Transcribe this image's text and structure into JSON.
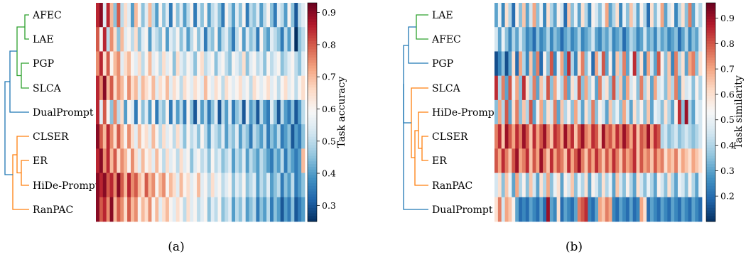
{
  "colors": {
    "cluster_green": "#2ca02c",
    "cluster_orange": "#ff7f0e",
    "cluster_blue": "#1f77b4",
    "colormap": "RdBu_r"
  },
  "chart_data": [
    {
      "type": "heatmap",
      "caption": "(a)",
      "colorbar_label": "Task accuracy",
      "colorbar_ticks": [
        "0.3",
        "0.4",
        "0.5",
        "0.6",
        "0.7",
        "0.8",
        "0.9"
      ],
      "value_range": [
        0.25,
        0.93
      ],
      "rows": [
        "AFEC",
        "LAE",
        "PGP",
        "SLCA",
        "DualPrompt",
        "CLSER",
        "ER",
        "HiDe-Prompt",
        "RanPAC"
      ],
      "row_cluster_colors": [
        "green",
        "green",
        "green",
        "green",
        "blue",
        "orange",
        "orange",
        "orange",
        "orange"
      ],
      "n_columns": 60,
      "values": [
        [
          0.85,
          0.9,
          0.55,
          0.85,
          0.7,
          0.45,
          0.8,
          0.5,
          0.65,
          0.55,
          0.4,
          0.7,
          0.6,
          0.45,
          0.55,
          0.7,
          0.5,
          0.4,
          0.6,
          0.45,
          0.55,
          0.35,
          0.6,
          0.45,
          0.55,
          0.4,
          0.5,
          0.6,
          0.35,
          0.55,
          0.45,
          0.6,
          0.4,
          0.5,
          0.55,
          0.45,
          0.35,
          0.6,
          0.5,
          0.4,
          0.55,
          0.45,
          0.6,
          0.35,
          0.5,
          0.45,
          0.55,
          0.4,
          0.5,
          0.6,
          0.45,
          0.35,
          0.55,
          0.5,
          0.4,
          0.6,
          0.45,
          0.3,
          0.5,
          0.55
        ],
        [
          0.8,
          0.6,
          0.85,
          0.5,
          0.75,
          0.65,
          0.45,
          0.7,
          0.55,
          0.6,
          0.5,
          0.65,
          0.45,
          0.55,
          0.6,
          0.4,
          0.55,
          0.5,
          0.45,
          0.6,
          0.4,
          0.55,
          0.5,
          0.6,
          0.45,
          0.55,
          0.4,
          0.5,
          0.6,
          0.45,
          0.55,
          0.35,
          0.5,
          0.45,
          0.6,
          0.4,
          0.5,
          0.55,
          0.45,
          0.35,
          0.5,
          0.6,
          0.4,
          0.55,
          0.45,
          0.5,
          0.35,
          0.6,
          0.45,
          0.4,
          0.55,
          0.5,
          0.45,
          0.35,
          0.5,
          0.4,
          0.55,
          0.25,
          0.45,
          0.5
        ],
        [
          0.75,
          0.85,
          0.65,
          0.8,
          0.6,
          0.7,
          0.75,
          0.55,
          0.65,
          0.7,
          0.6,
          0.55,
          0.65,
          0.5,
          0.6,
          0.7,
          0.55,
          0.6,
          0.5,
          0.65,
          0.55,
          0.6,
          0.45,
          0.65,
          0.55,
          0.5,
          0.6,
          0.55,
          0.45,
          0.6,
          0.65,
          0.5,
          0.55,
          0.6,
          0.45,
          0.55,
          0.6,
          0.5,
          0.45,
          0.6,
          0.55,
          0.5,
          0.65,
          0.45,
          0.55,
          0.6,
          0.5,
          0.55,
          0.45,
          0.6,
          0.5,
          0.55,
          0.6,
          0.45,
          0.5,
          0.55,
          0.6,
          0.5,
          0.45,
          0.55
        ],
        [
          0.85,
          0.75,
          0.9,
          0.7,
          0.8,
          0.65,
          0.75,
          0.7,
          0.6,
          0.75,
          0.65,
          0.7,
          0.55,
          0.7,
          0.65,
          0.6,
          0.7,
          0.55,
          0.65,
          0.6,
          0.7,
          0.55,
          0.65,
          0.6,
          0.5,
          0.65,
          0.6,
          0.55,
          0.65,
          0.6,
          0.55,
          0.7,
          0.6,
          0.55,
          0.65,
          0.6,
          0.5,
          0.65,
          0.6,
          0.55,
          0.6,
          0.65,
          0.55,
          0.6,
          0.5,
          0.65,
          0.6,
          0.55,
          0.6,
          0.65,
          0.55,
          0.6,
          0.5,
          0.6,
          0.65,
          0.55,
          0.6,
          0.5,
          0.6,
          0.65
        ],
        [
          0.85,
          0.55,
          0.8,
          0.6,
          0.45,
          0.75,
          0.5,
          0.65,
          0.4,
          0.6,
          0.55,
          0.35,
          0.6,
          0.45,
          0.55,
          0.4,
          0.6,
          0.35,
          0.5,
          0.45,
          0.6,
          0.35,
          0.55,
          0.4,
          0.5,
          0.35,
          0.6,
          0.45,
          0.3,
          0.55,
          0.4,
          0.5,
          0.35,
          0.45,
          0.55,
          0.3,
          0.5,
          0.4,
          0.55,
          0.35,
          0.45,
          0.5,
          0.3,
          0.55,
          0.4,
          0.45,
          0.3,
          0.5,
          0.4,
          0.35,
          0.55,
          0.45,
          0.3,
          0.5,
          0.4,
          0.35,
          0.45,
          0.3,
          0.4,
          0.5
        ],
        [
          0.9,
          0.8,
          0.7,
          0.85,
          0.75,
          0.65,
          0.8,
          0.7,
          0.6,
          0.75,
          0.65,
          0.55,
          0.7,
          0.6,
          0.65,
          0.55,
          0.7,
          0.6,
          0.5,
          0.65,
          0.55,
          0.6,
          0.5,
          0.65,
          0.55,
          0.45,
          0.6,
          0.5,
          0.55,
          0.45,
          0.6,
          0.5,
          0.4,
          0.55,
          0.5,
          0.45,
          0.55,
          0.4,
          0.5,
          0.45,
          0.55,
          0.4,
          0.5,
          0.45,
          0.35,
          0.5,
          0.45,
          0.4,
          0.5,
          0.35,
          0.45,
          0.4,
          0.5,
          0.35,
          0.4,
          0.45,
          0.3,
          0.4,
          0.35,
          0.45
        ],
        [
          0.85,
          0.9,
          0.75,
          0.85,
          0.7,
          0.8,
          0.65,
          0.75,
          0.7,
          0.6,
          0.75,
          0.65,
          0.55,
          0.7,
          0.6,
          0.65,
          0.55,
          0.7,
          0.6,
          0.5,
          0.65,
          0.55,
          0.6,
          0.5,
          0.65,
          0.55,
          0.6,
          0.45,
          0.55,
          0.6,
          0.5,
          0.55,
          0.45,
          0.6,
          0.5,
          0.55,
          0.45,
          0.5,
          0.55,
          0.4,
          0.5,
          0.45,
          0.55,
          0.4,
          0.5,
          0.45,
          0.4,
          0.5,
          0.45,
          0.4,
          0.35,
          0.45,
          0.4,
          0.5,
          0.35,
          0.45,
          0.4,
          0.35,
          0.4,
          0.7
        ],
        [
          0.9,
          0.85,
          0.9,
          0.8,
          0.85,
          0.75,
          0.9,
          0.8,
          0.7,
          0.85,
          0.75,
          0.8,
          0.7,
          0.65,
          0.8,
          0.7,
          0.75,
          0.6,
          0.7,
          0.75,
          0.6,
          0.7,
          0.65,
          0.55,
          0.7,
          0.6,
          0.65,
          0.55,
          0.6,
          0.7,
          0.55,
          0.6,
          0.5,
          0.65,
          0.55,
          0.6,
          0.5,
          0.55,
          0.6,
          0.45,
          0.55,
          0.5,
          0.6,
          0.45,
          0.5,
          0.55,
          0.4,
          0.5,
          0.45,
          0.55,
          0.4,
          0.45,
          0.5,
          0.35,
          0.45,
          0.4,
          0.5,
          0.35,
          0.4,
          0.45
        ],
        [
          0.9,
          0.8,
          0.85,
          0.75,
          0.9,
          0.7,
          0.8,
          0.75,
          0.65,
          0.8,
          0.7,
          0.75,
          0.6,
          0.7,
          0.65,
          0.75,
          0.6,
          0.7,
          0.55,
          0.65,
          0.7,
          0.6,
          0.55,
          0.65,
          0.6,
          0.5,
          0.65,
          0.55,
          0.6,
          0.5,
          0.55,
          0.6,
          0.45,
          0.55,
          0.5,
          0.6,
          0.45,
          0.5,
          0.55,
          0.4,
          0.5,
          0.45,
          0.55,
          0.4,
          0.45,
          0.5,
          0.35,
          0.45,
          0.4,
          0.5,
          0.35,
          0.45,
          0.4,
          0.3,
          0.4,
          0.35,
          0.45,
          0.3,
          0.35,
          0.4
        ]
      ]
    },
    {
      "type": "heatmap",
      "caption": "(b)",
      "colorbar_label": "Task similarity",
      "colorbar_ticks": [
        "0.2",
        "0.3",
        "0.4",
        "0.5",
        "0.6",
        "0.7",
        "0.8",
        "0.9"
      ],
      "value_range": [
        0.1,
        0.96
      ],
      "rows": [
        "LAE",
        "AFEC",
        "PGP",
        "SLCA",
        "HiDe-Prompt",
        "CLSER",
        "ER",
        "RanPAC",
        "DualPrompt"
      ],
      "row_cluster_colors": [
        "green",
        "green",
        "blue",
        "orange",
        "orange",
        "orange",
        "orange",
        "orange",
        "blue"
      ],
      "n_columns": 60,
      "values": [
        [
          0.3,
          0.5,
          0.25,
          0.6,
          0.4,
          0.2,
          0.55,
          0.35,
          0.65,
          0.3,
          0.45,
          0.7,
          0.35,
          0.5,
          0.25,
          0.6,
          0.4,
          0.3,
          0.55,
          0.45,
          0.2,
          0.65,
          0.35,
          0.5,
          0.3,
          0.6,
          0.4,
          0.25,
          0.55,
          0.45,
          0.35,
          0.5,
          0.7,
          0.3,
          0.4,
          0.6,
          0.25,
          0.5,
          0.35,
          0.65,
          0.45,
          0.3,
          0.55,
          0.4,
          0.2,
          0.6,
          0.35,
          0.5,
          0.7,
          0.3,
          0.45,
          0.55,
          0.25,
          0.4,
          0.6,
          0.35,
          0.75,
          0.3,
          0.5,
          0.4
        ],
        [
          0.45,
          0.3,
          0.5,
          0.35,
          0.25,
          0.4,
          0.3,
          0.45,
          0.35,
          0.25,
          0.3,
          0.2,
          0.35,
          0.25,
          0.3,
          0.4,
          0.25,
          0.35,
          0.3,
          0.2,
          0.3,
          0.35,
          0.25,
          0.3,
          0.4,
          0.25,
          0.3,
          0.35,
          0.45,
          0.3,
          0.25,
          0.35,
          0.3,
          0.4,
          0.25,
          0.3,
          0.35,
          0.2,
          0.3,
          0.4,
          0.35,
          0.25,
          0.3,
          0.45,
          0.3,
          0.35,
          0.25,
          0.4,
          0.3,
          0.35,
          0.25,
          0.3,
          0.35,
          0.2,
          0.3,
          0.4,
          0.25,
          0.35,
          0.3,
          0.45
        ],
        [
          0.15,
          0.25,
          0.35,
          0.15,
          0.3,
          0.6,
          0.2,
          0.7,
          0.4,
          0.25,
          0.65,
          0.3,
          0.75,
          0.2,
          0.55,
          0.35,
          0.8,
          0.25,
          0.5,
          0.7,
          0.3,
          0.85,
          0.4,
          0.25,
          0.6,
          0.75,
          0.35,
          0.5,
          0.2,
          0.7,
          0.45,
          0.8,
          0.3,
          0.55,
          0.25,
          0.65,
          0.4,
          0.75,
          0.3,
          0.5,
          0.85,
          0.35,
          0.6,
          0.25,
          0.7,
          0.45,
          0.3,
          0.8,
          0.55,
          0.35,
          0.65,
          0.25,
          0.75,
          0.4,
          0.6,
          0.3,
          0.7,
          0.75,
          0.35,
          0.6
        ],
        [
          0.85,
          0.4,
          0.75,
          0.3,
          0.8,
          0.5,
          0.7,
          0.35,
          0.85,
          0.6,
          0.4,
          0.75,
          0.3,
          0.65,
          0.45,
          0.8,
          0.35,
          0.7,
          0.5,
          0.4,
          0.75,
          0.3,
          0.6,
          0.45,
          0.8,
          0.35,
          0.7,
          0.4,
          0.55,
          0.3,
          0.75,
          0.45,
          0.6,
          0.35,
          0.8,
          0.4,
          0.65,
          0.3,
          0.7,
          0.45,
          0.55,
          0.35,
          0.75,
          0.4,
          0.6,
          0.3,
          0.7,
          0.45,
          0.5,
          0.35,
          0.65,
          0.4,
          0.75,
          0.3,
          0.6,
          0.45,
          0.5,
          0.35,
          0.55,
          0.4
        ],
        [
          0.35,
          0.7,
          0.4,
          0.8,
          0.3,
          0.6,
          0.75,
          0.35,
          0.65,
          0.4,
          0.8,
          0.3,
          0.55,
          0.7,
          0.35,
          0.6,
          0.45,
          0.75,
          0.3,
          0.65,
          0.4,
          0.55,
          0.35,
          0.7,
          0.45,
          0.3,
          0.6,
          0.4,
          0.75,
          0.35,
          0.55,
          0.45,
          0.3,
          0.65,
          0.4,
          0.5,
          0.35,
          0.7,
          0.45,
          0.3,
          0.6,
          0.4,
          0.55,
          0.35,
          0.65,
          0.3,
          0.5,
          0.45,
          0.35,
          0.6,
          0.4,
          0.3,
          0.55,
          0.85,
          0.35,
          0.9,
          0.4,
          0.3,
          0.5,
          0.45
        ],
        [
          0.75,
          0.85,
          0.65,
          0.9,
          0.8,
          0.7,
          0.85,
          0.75,
          0.9,
          0.8,
          0.65,
          0.85,
          0.7,
          0.8,
          0.9,
          0.75,
          0.65,
          0.85,
          0.8,
          0.7,
          0.9,
          0.75,
          0.85,
          0.65,
          0.8,
          0.9,
          0.75,
          0.7,
          0.85,
          0.8,
          0.65,
          0.9,
          0.75,
          0.8,
          0.7,
          0.85,
          0.75,
          0.9,
          0.8,
          0.7,
          0.85,
          0.65,
          0.8,
          0.75,
          0.9,
          0.7,
          0.85,
          0.8,
          0.4,
          0.45,
          0.35,
          0.4,
          0.45,
          0.35,
          0.4,
          0.45,
          0.4,
          0.35,
          0.4,
          0.45
        ],
        [
          0.8,
          0.7,
          0.85,
          0.75,
          0.65,
          0.8,
          0.9,
          0.7,
          0.75,
          0.85,
          0.65,
          0.8,
          0.7,
          0.9,
          0.75,
          0.65,
          0.85,
          0.7,
          0.8,
          0.75,
          0.65,
          0.85,
          0.7,
          0.8,
          0.9,
          0.75,
          0.65,
          0.8,
          0.7,
          0.85,
          0.75,
          0.65,
          0.8,
          0.7,
          0.85,
          0.75,
          0.65,
          0.8,
          0.7,
          0.75,
          0.85,
          0.65,
          0.8,
          0.7,
          0.75,
          0.65,
          0.8,
          0.7,
          0.75,
          0.6,
          0.7,
          0.65,
          0.75,
          0.6,
          0.7,
          0.65,
          0.6,
          0.7,
          0.65,
          0.6
        ],
        [
          0.45,
          0.6,
          0.35,
          0.65,
          0.5,
          0.3,
          0.7,
          0.4,
          0.55,
          0.35,
          0.65,
          0.45,
          0.3,
          0.6,
          0.4,
          0.7,
          0.35,
          0.5,
          0.6,
          0.3,
          0.55,
          0.45,
          0.65,
          0.35,
          0.5,
          0.4,
          0.6,
          0.3,
          0.55,
          0.45,
          0.35,
          0.6,
          0.4,
          0.5,
          0.3,
          0.65,
          0.45,
          0.35,
          0.55,
          0.4,
          0.3,
          0.6,
          0.45,
          0.35,
          0.5,
          0.4,
          0.3,
          0.55,
          0.45,
          0.35,
          0.6,
          0.4,
          0.3,
          0.5,
          0.45,
          0.35,
          0.55,
          0.4,
          0.3,
          0.5
        ],
        [
          0.6,
          0.75,
          0.45,
          0.7,
          0.65,
          0.55,
          0.3,
          0.2,
          0.25,
          0.2,
          0.3,
          0.25,
          0.2,
          0.3,
          0.2,
          0.9,
          0.3,
          0.25,
          0.6,
          0.2,
          0.3,
          0.25,
          0.2,
          0.3,
          0.75,
          0.8,
          0.85,
          0.25,
          0.2,
          0.3,
          0.7,
          0.65,
          0.75,
          0.7,
          0.25,
          0.2,
          0.3,
          0.25,
          0.2,
          0.3,
          0.2,
          0.25,
          0.7,
          0.6,
          0.2,
          0.3,
          0.25,
          0.2,
          0.3,
          0.25,
          0.2,
          0.3,
          0.25,
          0.2,
          0.3,
          0.25,
          0.2,
          0.3,
          0.25,
          0.2
        ]
      ]
    }
  ]
}
